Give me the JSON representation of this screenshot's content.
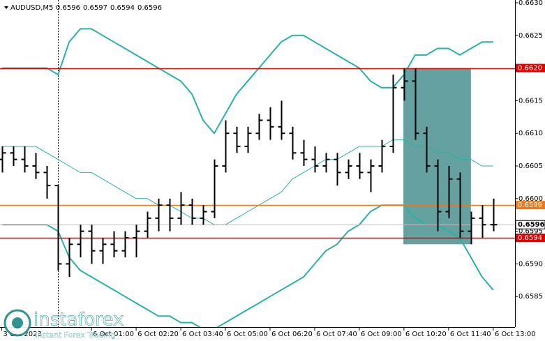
{
  "chart_data": {
    "type": "ohlc",
    "title": "AUDUSD,M5",
    "header_values": [
      0.6596,
      0.6597,
      0.6594,
      0.6596
    ],
    "x": [
      -100,
      -80,
      -60,
      -40,
      -20,
      0,
      20,
      40,
      60,
      80,
      100,
      120,
      140,
      160,
      180,
      200,
      220,
      240,
      260,
      280,
      300,
      320,
      340,
      360,
      380,
      400,
      420,
      440,
      460,
      480,
      500,
      520,
      540,
      560,
      580,
      600,
      620,
      640,
      660,
      680,
      700,
      720,
      740,
      760,
      780
    ],
    "open": [
      0.6606,
      0.6607,
      0.6606,
      0.6605,
      0.6604,
      0.6602,
      0.659,
      0.6593,
      0.6595,
      0.6592,
      0.6593,
      0.6592,
      0.6594,
      0.6595,
      0.6597,
      0.6599,
      0.6597,
      0.6599,
      0.6597,
      0.6598,
      0.6605,
      0.661,
      0.6608,
      0.661,
      0.6612,
      0.6611,
      0.661,
      0.6607,
      0.6606,
      0.6605,
      0.6606,
      0.6604,
      0.6605,
      0.6604,
      0.6605,
      0.6608,
      0.6617,
      0.6618,
      0.661,
      0.6605,
      0.6598,
      0.6603,
      0.6595,
      0.6597,
      0.6596
    ],
    "high": [
      0.6608,
      0.6608,
      0.6608,
      0.6607,
      0.6605,
      0.6602,
      0.6594,
      0.6596,
      0.6596,
      0.6594,
      0.6595,
      0.6595,
      0.6596,
      0.6598,
      0.66,
      0.66,
      0.6601,
      0.66,
      0.6599,
      0.6606,
      0.6612,
      0.6611,
      0.6611,
      0.6613,
      0.6614,
      0.6615,
      0.6611,
      0.6609,
      0.6608,
      0.6607,
      0.6607,
      0.6606,
      0.6607,
      0.6606,
      0.6609,
      0.6619,
      0.662,
      0.662,
      0.6611,
      0.6606,
      0.6605,
      0.6604,
      0.6598,
      0.6599,
      0.66
    ],
    "low": [
      0.6604,
      0.6605,
      0.6604,
      0.6603,
      0.66,
      0.6589,
      0.6588,
      0.6591,
      0.659,
      0.659,
      0.6591,
      0.6591,
      0.6591,
      0.6594,
      0.6595,
      0.6595,
      0.6596,
      0.6596,
      0.6596,
      0.6597,
      0.6604,
      0.6607,
      0.6607,
      0.6609,
      0.6609,
      0.6609,
      0.6606,
      0.6605,
      0.6604,
      0.6604,
      0.6602,
      0.6603,
      0.6603,
      0.6601,
      0.6604,
      0.6607,
      0.6615,
      0.6609,
      0.6604,
      0.6595,
      0.6597,
      0.6594,
      0.6593,
      0.6594,
      0.6595
    ],
    "close": [
      0.6607,
      0.6606,
      0.6605,
      0.6604,
      0.6602,
      0.659,
      0.6593,
      0.6595,
      0.6592,
      0.6593,
      0.6592,
      0.6594,
      0.6595,
      0.6597,
      0.6599,
      0.6597,
      0.6599,
      0.6597,
      0.6598,
      0.6605,
      0.661,
      0.6608,
      0.661,
      0.6612,
      0.6611,
      0.661,
      0.6607,
      0.6606,
      0.6605,
      0.6606,
      0.6604,
      0.6605,
      0.6604,
      0.6605,
      0.6608,
      0.6617,
      0.6618,
      0.661,
      0.6605,
      0.6598,
      0.6603,
      0.6595,
      0.6597,
      0.6596,
      0.6596
    ],
    "color": "#000000",
    "bands": {
      "color": "#26b3a6",
      "upper": [
        0.662,
        0.662,
        0.662,
        0.662,
        0.662,
        0.6619,
        0.6624,
        0.6626,
        0.6626,
        0.6625,
        0.6624,
        0.6623,
        0.6622,
        0.6621,
        0.662,
        0.6619,
        0.6618,
        0.6616,
        0.6612,
        0.661,
        0.6613,
        0.6616,
        0.6618,
        0.662,
        0.6622,
        0.6624,
        0.6625,
        0.6625,
        0.6624,
        0.6623,
        0.6622,
        0.6621,
        0.662,
        0.6618,
        0.6617,
        0.6617,
        0.6619,
        0.6622,
        0.6622,
        0.6623,
        0.6623,
        0.6622,
        0.6623,
        0.6624,
        0.6624
      ],
      "middle": [
        0.6608,
        0.6608,
        0.6608,
        0.6608,
        0.6607,
        0.6606,
        0.6605,
        0.6604,
        0.6604,
        0.6603,
        0.6602,
        0.6601,
        0.66,
        0.66,
        0.6599,
        0.6599,
        0.6598,
        0.6597,
        0.6597,
        0.6596,
        0.6596,
        0.6597,
        0.6598,
        0.6599,
        0.66,
        0.6601,
        0.6603,
        0.6604,
        0.6605,
        0.6606,
        0.6606,
        0.6607,
        0.6608,
        0.6608,
        0.6608,
        0.6609,
        0.6609,
        0.6608,
        0.6608,
        0.6607,
        0.6607,
        0.6606,
        0.6606,
        0.6605,
        0.6605
      ],
      "lower": [
        0.6596,
        0.6596,
        0.6596,
        0.6596,
        0.6596,
        0.6595,
        0.6591,
        0.6589,
        0.6588,
        0.6587,
        0.6586,
        0.6585,
        0.6584,
        0.6583,
        0.6582,
        0.6582,
        0.6581,
        0.6581,
        0.658,
        0.658,
        0.6581,
        0.6582,
        0.6583,
        0.6584,
        0.6585,
        0.6586,
        0.6587,
        0.6588,
        0.659,
        0.6592,
        0.6593,
        0.6595,
        0.6596,
        0.6598,
        0.6599,
        0.6599,
        0.6599,
        0.6597,
        0.6596,
        0.6596,
        0.6595,
        0.6594,
        0.6591,
        0.6588,
        0.6586
      ]
    },
    "levels": [
      {
        "value": 0.662,
        "label": "0.6620",
        "color": "#e00000"
      },
      {
        "value": 0.6599,
        "label": "0.6599",
        "color": "#f07818"
      },
      {
        "value": 0.6596,
        "label": "0.6596",
        "color": "#c0c0c0"
      },
      {
        "value": 0.6594,
        "label": "0.6594",
        "color": "#e00000"
      }
    ],
    "rectangle": {
      "x": [
        619,
        740
      ],
      "y": [
        0.6593,
        0.662
      ],
      "color": "#3f8a8a"
    },
    "period_separators": [
      0
    ],
    "xlim": [
      -104,
      819
    ],
    "ylim": [
      0.658,
      0.663
    ],
    "xticks": [
      {
        "value": -101,
        "label": "3 Oct 2023"
      },
      {
        "value": 60,
        "label": "6 Oct 01:00"
      },
      {
        "value": 140,
        "label": "6 Oct 02:20"
      },
      {
        "value": 220,
        "label": "6 Oct 03:40"
      },
      {
        "value": 300,
        "label": "6 Oct 05:00"
      },
      {
        "value": 380,
        "label": "6 Oct 06:20"
      },
      {
        "value": 460,
        "label": "6 Oct 07:40"
      },
      {
        "value": 540,
        "label": "6 Oct 09:00"
      },
      {
        "value": 620,
        "label": "6 Oct 10:20"
      },
      {
        "value": 700,
        "label": "6 Oct 11:40"
      },
      {
        "value": 780,
        "label": "6 Oct 13:00"
      }
    ],
    "yticks": [
      {
        "value": 0.663,
        "label": "0.6630"
      },
      0.6625,
      {
        "value": 0.662,
        "label": "0.6620"
      },
      0.6615,
      {
        "value": 0.661,
        "label": "0.6610"
      },
      0.6605,
      {
        "value": 0.66,
        "label": "0.6600"
      },
      0.6595,
      {
        "value": 0.659,
        "label": "0.6590"
      },
      0.6585
    ],
    "watermark": {
      "brand": "instaforex",
      "tagline": "Instant Forex Trading"
    }
  }
}
